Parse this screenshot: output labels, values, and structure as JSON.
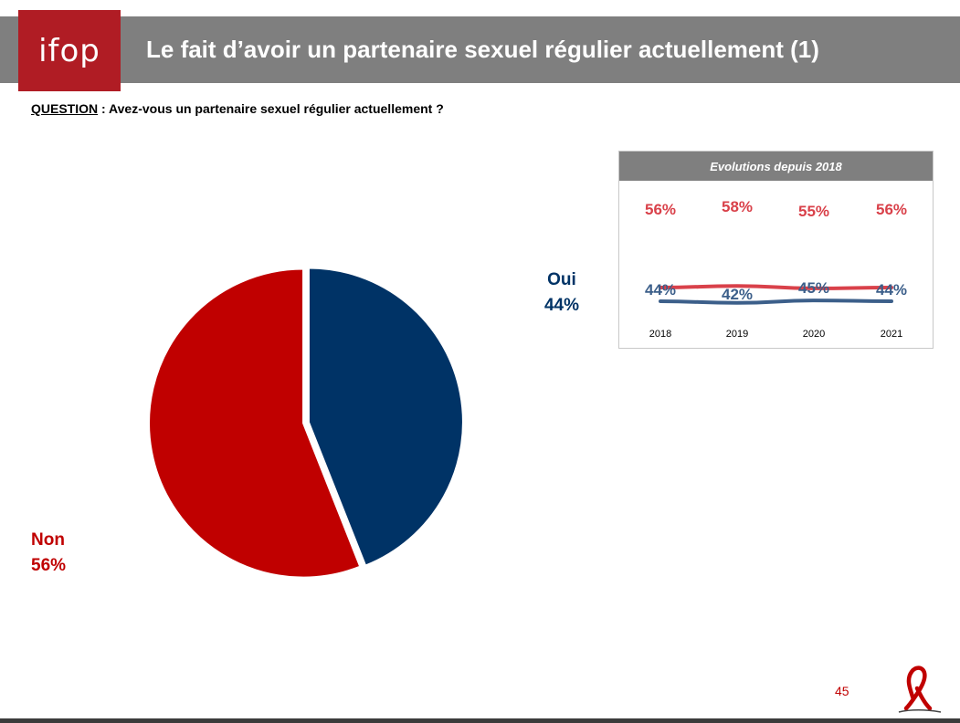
{
  "header": {
    "logo_text": "ifop",
    "title": "Le fait d’avoir un partenaire sexuel régulier actuellement (1)"
  },
  "question": {
    "label": "QUESTION",
    "text": " : Avez-vous un partenaire sexuel régulier actuellement ?"
  },
  "colors": {
    "oui": "#003366",
    "non": "#c00000",
    "evo_red": "#d9414a",
    "evo_blue": "#3c5f8a"
  },
  "chart_data": [
    {
      "type": "pie",
      "slices": [
        {
          "label": "Oui",
          "value": 44,
          "display": "44%",
          "color": "#003366"
        },
        {
          "label": "Non",
          "value": 56,
          "display": "56%",
          "color": "#c00000"
        }
      ]
    },
    {
      "type": "line",
      "title": "Evolutions depuis 2018",
      "x": [
        "2018",
        "2019",
        "2020",
        "2021"
      ],
      "series": [
        {
          "values": [
            56,
            58,
            55,
            56
          ],
          "labels": [
            "56%",
            "58%",
            "55%",
            "56%"
          ],
          "color": "#d9414a"
        },
        {
          "values": [
            44,
            42,
            45,
            44
          ],
          "labels": [
            "44%",
            "42%",
            "45%",
            "44%"
          ],
          "color": "#3c5f8a"
        }
      ]
    }
  ],
  "footer": {
    "page_number": "45",
    "brand": "Sidaction"
  }
}
